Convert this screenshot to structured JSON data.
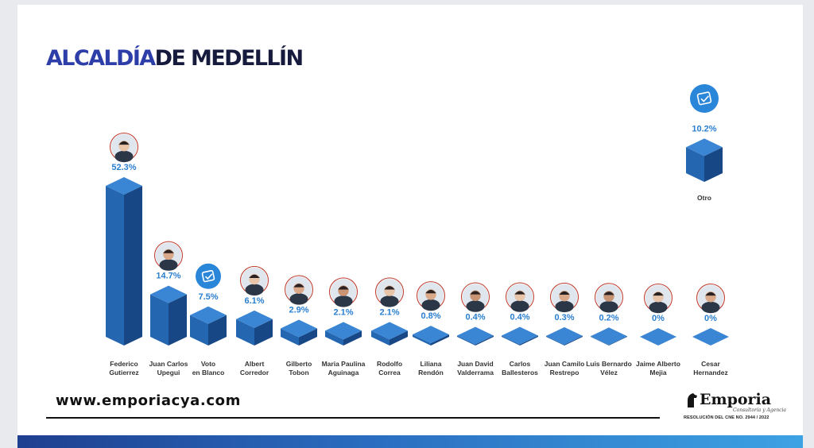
{
  "header": {
    "title_part1": "ALCALDÍA",
    "title_part2": "DE MEDELLÍN"
  },
  "chart_data": {
    "type": "bar",
    "title": "ALCALDÍA DE MEDELLÍN",
    "categories": [
      "Federico Gutierrez",
      "Juan Carlos Upegui",
      "Voto en Blanco",
      "Albert Corredor",
      "Gilberto Tobon",
      "Maria Paulina Aguinaga",
      "Rodolfo Correa",
      "Liliana Rendón",
      "Juan David Valderrama",
      "Carlos Ballesteros",
      "Juan Camilo Restrepo",
      "Luis Bernardo Vélez",
      "Jaime Alberto Mejia",
      "Cesar Hernandez",
      "Otro"
    ],
    "labels": [
      [
        "Federico",
        "Gutierrez"
      ],
      [
        "Juan Carlos",
        "Upegui"
      ],
      [
        "Voto",
        "en Blanco"
      ],
      [
        "Albert",
        "Corredor"
      ],
      [
        "Gilberto",
        "Tobon"
      ],
      [
        "Maria Paulina",
        "Aguinaga"
      ],
      [
        "Rodolfo",
        "Correa"
      ],
      [
        "Liliana",
        "Rendón"
      ],
      [
        "Juan David",
        "Valderrama"
      ],
      [
        "Carlos",
        "Ballesteros"
      ],
      [
        "Juan Camilo",
        "Restrepo"
      ],
      [
        "Luis Bernardo",
        "Vélez"
      ],
      [
        "Jaime Alberto",
        "Mejia"
      ],
      [
        "Cesar",
        "Hernandez"
      ],
      [
        "Otro"
      ]
    ],
    "values": [
      52.3,
      14.7,
      7.5,
      6.1,
      2.9,
      2.1,
      2.1,
      0.8,
      0.4,
      0.4,
      0.3,
      0.2,
      0,
      0,
      10.2
    ],
    "value_labels": [
      "52.3%",
      "14.7%",
      "7.5%",
      "6.1%",
      "2.9%",
      "2.1%",
      "2.1%",
      "0.8%",
      "0.4%",
      "0.4%",
      "0.3%",
      "0.2%",
      "0%",
      "0%",
      "10.2%"
    ],
    "icons": [
      "avatar",
      "avatar",
      "ballot-icon",
      "avatar",
      "avatar",
      "avatar",
      "avatar",
      "avatar",
      "avatar",
      "avatar",
      "avatar",
      "avatar",
      "avatar",
      "avatar",
      "ballot-icon"
    ],
    "ylim": [
      0,
      60
    ],
    "grid": false,
    "legend": "none",
    "colors": {
      "bar_front": "#2566b0",
      "bar_side": "#174784",
      "bar_top": "#3a86d4",
      "value_label": "#2a7fd0",
      "icon_circle": "#2a86d8"
    }
  },
  "footer": {
    "website": "www.emporiacya.com",
    "brand": "Emporia",
    "tagline": "Consultoría y Agencia",
    "resolution": "RESOLUCIÓN DEL CNE NO. 2944 / 2022"
  }
}
